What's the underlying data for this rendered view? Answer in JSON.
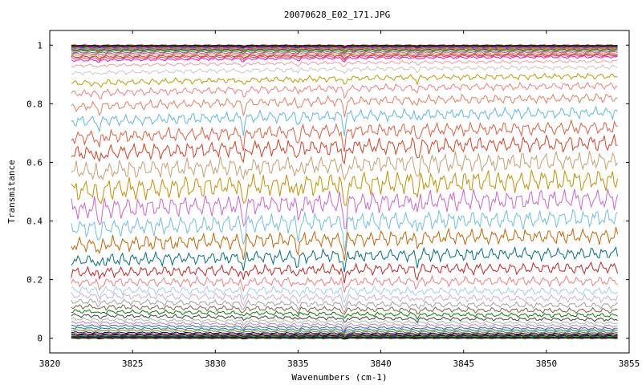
{
  "chart_data": {
    "type": "line",
    "title": "20070628_E02_171.JPG",
    "xlabel": "Wavenumbers (cm-1)",
    "ylabel": "Transmitance",
    "xlim": [
      3820,
      3855
    ],
    "ylim": [
      -0.05,
      1.05
    ],
    "x_ticks": [
      3820,
      3825,
      3830,
      3835,
      3840,
      3845,
      3850,
      3855
    ],
    "y_ticks": [
      0,
      0.2,
      0.4,
      0.6,
      0.8,
      1
    ],
    "x_tick_labels": [
      "3820",
      "3825",
      "3830",
      "3835",
      "3840",
      "3845",
      "3850",
      "3855"
    ],
    "y_tick_labels": [
      "0",
      "0.2",
      "0.4",
      "0.6",
      "0.8",
      "1"
    ],
    "grid": false,
    "legend": "none",
    "x_range_of_data": [
      3821.3,
      3854.3
    ],
    "absorption_lines_cm1": [
      3823.0,
      3831.7,
      3835.0,
      3837.8,
      3842.2
    ],
    "series": [
      {
        "start": 1.0,
        "end": 1.0,
        "color": "#cc0000"
      },
      {
        "start": 0.998,
        "end": 0.998,
        "color": "#000000"
      },
      {
        "start": 0.996,
        "end": 0.996,
        "color": "#008800"
      },
      {
        "start": 0.994,
        "end": 0.994,
        "color": "#0000cc"
      },
      {
        "start": 0.992,
        "end": 0.992,
        "color": "#cc00cc"
      },
      {
        "start": 0.99,
        "end": 0.99,
        "color": "#d4a000"
      },
      {
        "start": 0.988,
        "end": 0.988,
        "color": "#00aaaa"
      },
      {
        "start": 0.985,
        "end": 0.988,
        "color": "#ff6600"
      },
      {
        "start": 0.983,
        "end": 0.985,
        "color": "#990099"
      },
      {
        "start": 0.98,
        "end": 0.984,
        "color": "#00cc00"
      },
      {
        "start": 0.975,
        "end": 0.98,
        "color": "#666666"
      },
      {
        "start": 0.97,
        "end": 0.976,
        "color": "#ff33cc"
      },
      {
        "start": 0.965,
        "end": 0.972,
        "color": "#99cc00"
      },
      {
        "start": 0.96,
        "end": 0.968,
        "color": "#ff0099"
      },
      {
        "start": 0.955,
        "end": 0.965,
        "color": "#cc6600"
      },
      {
        "start": 0.948,
        "end": 0.96,
        "color": "#ff00ff"
      },
      {
        "start": 0.93,
        "end": 0.945,
        "color": "#e8a0a0"
      },
      {
        "start": 0.905,
        "end": 0.925,
        "color": "#c8c8c8"
      },
      {
        "start": 0.87,
        "end": 0.895,
        "color": "#b8a000"
      },
      {
        "start": 0.835,
        "end": 0.862,
        "color": "#f08080"
      },
      {
        "start": 0.79,
        "end": 0.82,
        "color": "#e88060"
      },
      {
        "start": 0.74,
        "end": 0.77,
        "color": "#60b8e8"
      },
      {
        "start": 0.685,
        "end": 0.718,
        "color": "#e06040"
      },
      {
        "start": 0.63,
        "end": 0.665,
        "color": "#d84020"
      },
      {
        "start": 0.57,
        "end": 0.605,
        "color": "#c8a070"
      },
      {
        "start": 0.505,
        "end": 0.54,
        "color": "#c89000"
      },
      {
        "start": 0.44,
        "end": 0.475,
        "color": "#cc66cc"
      },
      {
        "start": 0.375,
        "end": 0.41,
        "color": "#70c0e0"
      },
      {
        "start": 0.318,
        "end": 0.35,
        "color": "#c86400"
      },
      {
        "start": 0.265,
        "end": 0.29,
        "color": "#007080"
      },
      {
        "start": 0.225,
        "end": 0.24,
        "color": "#cc2222"
      },
      {
        "start": 0.19,
        "end": 0.195,
        "color": "#f08080"
      },
      {
        "start": 0.165,
        "end": 0.16,
        "color": "#a0d0e8"
      },
      {
        "start": 0.145,
        "end": 0.135,
        "color": "#d0b0d0"
      },
      {
        "start": 0.125,
        "end": 0.112,
        "color": "#a0a0a0"
      },
      {
        "start": 0.108,
        "end": 0.094,
        "color": "#806040"
      },
      {
        "start": 0.092,
        "end": 0.078,
        "color": "#008000"
      },
      {
        "start": 0.078,
        "end": 0.064,
        "color": "#404040"
      },
      {
        "start": 0.065,
        "end": 0.052,
        "color": "#a0c0a0"
      },
      {
        "start": 0.054,
        "end": 0.042,
        "color": "#c080c0"
      },
      {
        "start": 0.044,
        "end": 0.033,
        "color": "#4060a0"
      },
      {
        "start": 0.035,
        "end": 0.026,
        "color": "#008080"
      },
      {
        "start": 0.027,
        "end": 0.02,
        "color": "#808000"
      },
      {
        "start": 0.02,
        "end": 0.015,
        "color": "#000080"
      },
      {
        "start": 0.015,
        "end": 0.011,
        "color": "#800000"
      },
      {
        "start": 0.011,
        "end": 0.008,
        "color": "#000000"
      },
      {
        "start": 0.008,
        "end": 0.006,
        "color": "#00cc00"
      },
      {
        "start": 0.006,
        "end": 0.004,
        "color": "#0000ff"
      },
      {
        "start": 0.004,
        "end": 0.003,
        "color": "#cc0000"
      },
      {
        "start": 0.002,
        "end": 0.002,
        "color": "#000000"
      },
      {
        "start": 0.001,
        "end": 0.001,
        "color": "#00aa00"
      },
      {
        "start": 0.0,
        "end": 0.0,
        "color": "#000000"
      }
    ]
  }
}
